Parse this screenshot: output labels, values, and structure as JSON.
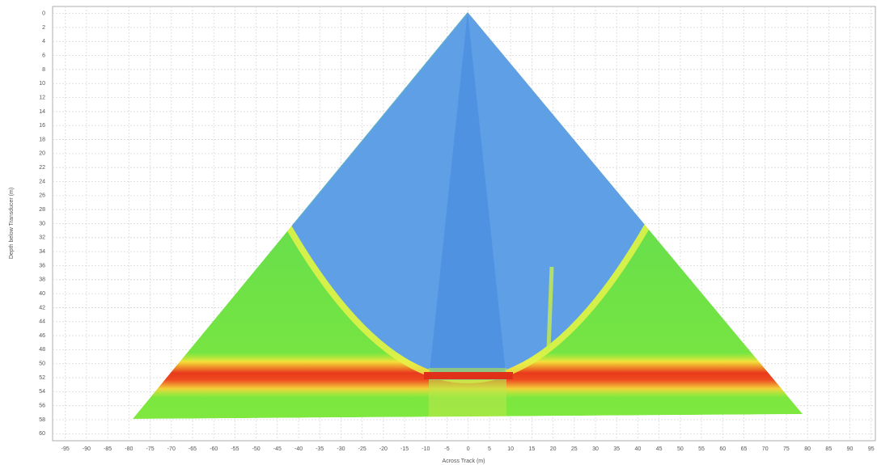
{
  "chart_data": {
    "type": "sonar-fan",
    "x_label": "Across Track (m)",
    "y_label": "Depth below Transducer (m)",
    "xlim": [
      -98,
      96
    ],
    "ylim": [
      -1,
      61
    ],
    "y_inverted": true,
    "grid": true,
    "xticks": [
      -95,
      -90,
      -85,
      -80,
      -75,
      -70,
      -65,
      -60,
      -55,
      -50,
      -45,
      -40,
      -35,
      -30,
      -25,
      -20,
      -15,
      -10,
      -5,
      0,
      5,
      10,
      15,
      20,
      25,
      30,
      35,
      40,
      45,
      50,
      55,
      60,
      65,
      70,
      75,
      80,
      85,
      90,
      95
    ],
    "yticks": [
      0,
      2,
      4,
      6,
      8,
      10,
      12,
      14,
      16,
      18,
      20,
      22,
      24,
      26,
      28,
      30,
      32,
      34,
      36,
      38,
      40,
      42,
      44,
      46,
      48,
      50,
      52,
      54,
      56,
      58,
      60
    ]
  }
}
